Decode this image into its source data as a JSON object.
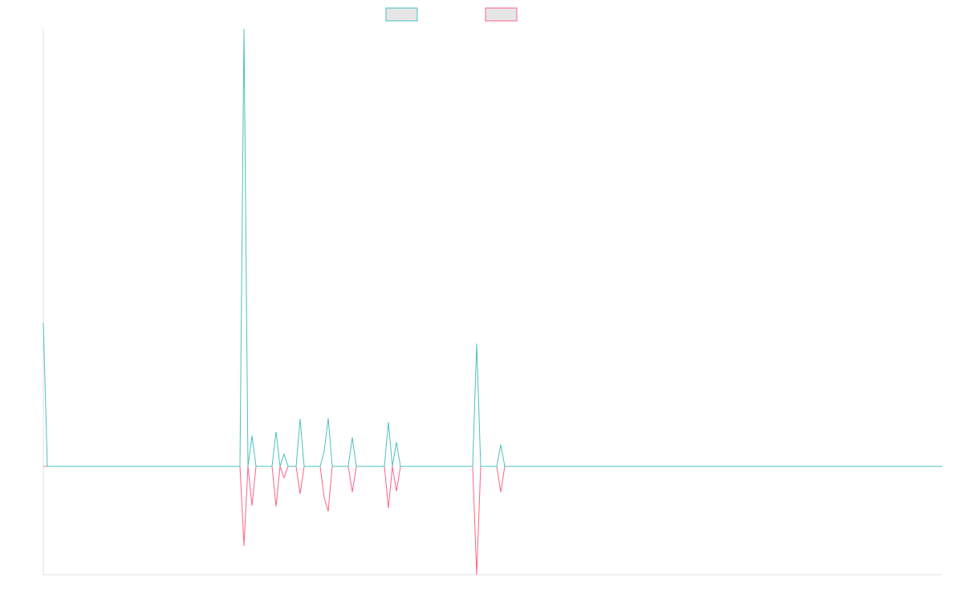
{
  "chart_data": {
    "type": "line",
    "ylim": [
      -135,
      545
    ],
    "series": [
      {
        "color": "#4bc0c0",
        "values": [
          179,
          0,
          0,
          0,
          0,
          0,
          0,
          0,
          0,
          0,
          0,
          0,
          0,
          0,
          0,
          0,
          0,
          0,
          0,
          0,
          0,
          0,
          0,
          0,
          0,
          0,
          0,
          0,
          0,
          0,
          0,
          0,
          0,
          0,
          0,
          0,
          0,
          0,
          0,
          0,
          0,
          0,
          0,
          0,
          0,
          0,
          0,
          0,
          0,
          0,
          545,
          0,
          38,
          0,
          0,
          0,
          0,
          0,
          43,
          0,
          15,
          0,
          0,
          0,
          59,
          0,
          0,
          0,
          0,
          0,
          19,
          60,
          0,
          0,
          0,
          0,
          0,
          36,
          0,
          0,
          0,
          0,
          0,
          0,
          0,
          0,
          55,
          0,
          30,
          0,
          0,
          0,
          0,
          0,
          0,
          0,
          0,
          0,
          0,
          0,
          0,
          0,
          0,
          0,
          0,
          0,
          0,
          0,
          153,
          0,
          0,
          0,
          0,
          0,
          27,
          0,
          0,
          0,
          0,
          0,
          0,
          0,
          0,
          0,
          0,
          0,
          0,
          0,
          0,
          0,
          0,
          0,
          0,
          0,
          0,
          0,
          0,
          0,
          0,
          0,
          0,
          0,
          0,
          0,
          0,
          0,
          0,
          0,
          0,
          0,
          0,
          0,
          0,
          0,
          0,
          0,
          0,
          0,
          0,
          0,
          0,
          0,
          0,
          0,
          0,
          0,
          0,
          0,
          0,
          0,
          0,
          0,
          0,
          0,
          0,
          0,
          0,
          0,
          0,
          0,
          0,
          0,
          0,
          0,
          0,
          0,
          0,
          0,
          0,
          0,
          0,
          0,
          0,
          0,
          0,
          0,
          0,
          0,
          0,
          0,
          0,
          0,
          0,
          0,
          0,
          0,
          0,
          0,
          0,
          0,
          0,
          0,
          0,
          0,
          0,
          0,
          0,
          0,
          0,
          0,
          0,
          0,
          0,
          0,
          0
        ]
      },
      {
        "color": "#ff6384",
        "values": [
          0,
          0,
          0,
          0,
          0,
          0,
          0,
          0,
          0,
          0,
          0,
          0,
          0,
          0,
          0,
          0,
          0,
          0,
          0,
          0,
          0,
          0,
          0,
          0,
          0,
          0,
          0,
          0,
          0,
          0,
          0,
          0,
          0,
          0,
          0,
          0,
          0,
          0,
          0,
          0,
          0,
          0,
          0,
          0,
          0,
          0,
          0,
          0,
          0,
          0,
          -99,
          0,
          -49,
          0,
          0,
          0,
          0,
          0,
          -50,
          0,
          -14,
          0,
          0,
          0,
          -34,
          0,
          0,
          0,
          0,
          0,
          -39,
          -56,
          0,
          0,
          0,
          0,
          0,
          -32,
          0,
          0,
          0,
          0,
          0,
          0,
          0,
          0,
          -52,
          0,
          -31,
          0,
          0,
          0,
          0,
          0,
          0,
          0,
          0,
          0,
          0,
          0,
          0,
          0,
          0,
          0,
          0,
          0,
          0,
          0,
          -135,
          0,
          0,
          0,
          0,
          0,
          -32,
          0,
          0,
          0,
          0,
          0,
          0,
          0,
          0,
          0,
          0,
          0,
          0,
          0,
          0,
          0,
          0,
          0,
          0,
          0,
          0,
          0,
          0,
          0,
          0,
          0,
          0,
          0,
          0,
          0,
          0,
          0,
          0,
          0,
          0,
          0,
          0,
          0,
          0,
          0,
          0,
          0,
          0,
          0,
          0,
          0,
          0,
          0,
          0,
          0,
          0,
          0,
          0,
          0,
          0,
          0,
          0,
          0,
          0,
          0,
          0,
          0,
          0,
          0,
          0,
          0,
          0,
          0,
          0,
          0,
          0,
          0,
          0,
          0,
          0,
          0,
          0,
          0,
          0,
          0,
          0,
          0,
          0,
          0,
          0,
          0,
          0,
          0,
          0,
          0,
          0,
          0,
          0,
          0,
          0,
          0,
          0,
          0,
          0,
          0,
          0,
          0,
          0,
          0,
          0,
          0,
          0,
          0,
          0,
          0,
          0
        ]
      }
    ]
  }
}
